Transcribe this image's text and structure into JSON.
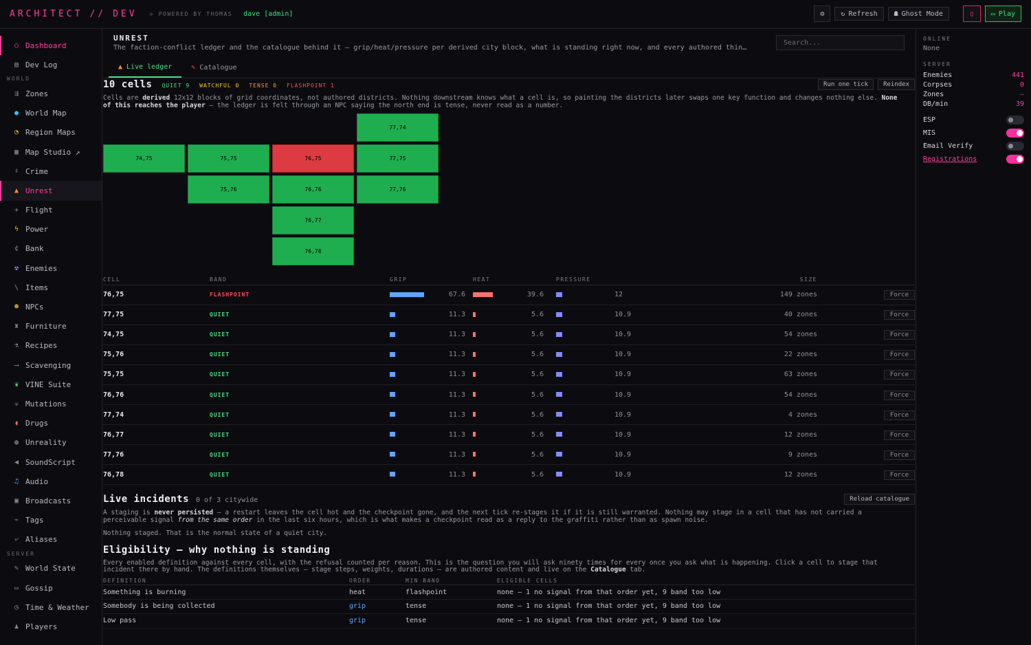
{
  "topbar": {
    "brand_left": "ARCHITECT",
    "brand_sep": "//",
    "brand_right": "DEV",
    "powered": "POWERED BY THOMAS",
    "user": "dave [admin]",
    "refresh": "Refresh",
    "ghost": "Ghost Mode",
    "play": "Play"
  },
  "sidebar": {
    "items_top": [
      {
        "label": "Dashboard",
        "icon": "circle-icon"
      },
      {
        "label": "Dev Log",
        "icon": "document-icon"
      }
    ],
    "world_label": "WORLD",
    "world_items": [
      {
        "label": "Zones",
        "icon": "zones-icon"
      },
      {
        "label": "World Map",
        "icon": "globe-icon"
      },
      {
        "label": "Region Maps",
        "icon": "compass-icon"
      },
      {
        "label": "Map Studio ↗",
        "icon": "map-studio-icon"
      },
      {
        "label": "Crime",
        "icon": "crime-icon"
      },
      {
        "label": "Unrest",
        "icon": "fire-icon"
      },
      {
        "label": "Flight",
        "icon": "plane-icon"
      },
      {
        "label": "Power",
        "icon": "bolt-icon"
      },
      {
        "label": "Bank",
        "icon": "currency-icon"
      },
      {
        "label": "Enemies",
        "icon": "enemy-icon"
      },
      {
        "label": "Items",
        "icon": "items-icon"
      },
      {
        "label": "NPCs",
        "icon": "npc-icon"
      },
      {
        "label": "Furniture",
        "icon": "furniture-icon"
      },
      {
        "label": "Recipes",
        "icon": "recipe-icon"
      },
      {
        "label": "Scavenging",
        "icon": "scavenge-icon"
      },
      {
        "label": "VINE Suite",
        "icon": "vine-icon"
      },
      {
        "label": "Mutations",
        "icon": "mutation-icon"
      },
      {
        "label": "Drugs",
        "icon": "pill-icon"
      },
      {
        "label": "Unreality",
        "icon": "unreality-icon"
      },
      {
        "label": "SoundScript",
        "icon": "soundscript-icon"
      },
      {
        "label": "Audio",
        "icon": "music-icon"
      },
      {
        "label": "Broadcasts",
        "icon": "broadcast-icon"
      },
      {
        "label": "Tags",
        "icon": "tag-icon"
      },
      {
        "label": "Aliases",
        "icon": "alias-icon"
      }
    ],
    "server_label": "SERVER",
    "server_items": [
      {
        "label": "World State",
        "icon": "world-state-icon"
      },
      {
        "label": "Gossip",
        "icon": "chat-icon"
      },
      {
        "label": "Time & Weather",
        "icon": "clock-icon"
      },
      {
        "label": "Players",
        "icon": "players-icon"
      }
    ]
  },
  "page": {
    "title": "UNREST",
    "description": "The faction-conflict ledger and the catalogue behind it — grip/heat/pressure per derived city block, what is standing right now, and every authored thin…",
    "search_placeholder": "Search...",
    "tabs": [
      "Live ledger",
      "Catalogue"
    ]
  },
  "ledger": {
    "count": "10 cells",
    "pills": [
      "QUIET 9",
      "WATCHFUL 0",
      "TENSE 0",
      "FLASHPOINT 1"
    ],
    "run_tick": "Run one tick",
    "reindex": "Reindex",
    "para_a": "Cells are ",
    "para_b": "derived",
    "para_c": " 12x12 blocks of grid coordinates, not authored districts. Nothing downstream knows what a cell is, so painting the districts later swaps one key function and changes nothing else. ",
    "para_d": "None of this reaches the player",
    "para_e": " — the ledger is felt through an NPC saying the north end is tense, never read as a number.",
    "grid_cells": [
      "74,75",
      "75,75",
      "76,75",
      "77,74",
      "77,75",
      "75,76",
      "76,76",
      "77,76",
      "76,77",
      "76,78"
    ],
    "headers": [
      "CELL",
      "BAND",
      "GRIP",
      "HEAT",
      "PRESSURE",
      "SIZE"
    ],
    "rows": [
      {
        "cell": "76,75",
        "band": "FLASHPOINT",
        "grip": "67.6",
        "heat": "39.6",
        "pressure": "12",
        "size": "149 zones",
        "action": "Force"
      },
      {
        "cell": "77,75",
        "band": "QUIET",
        "grip": "11.3",
        "heat": "5.6",
        "pressure": "10.9",
        "size": "40 zones",
        "action": "Force"
      },
      {
        "cell": "74,75",
        "band": "QUIET",
        "grip": "11.3",
        "heat": "5.6",
        "pressure": "10.9",
        "size": "54 zones",
        "action": "Force"
      },
      {
        "cell": "75,76",
        "band": "QUIET",
        "grip": "11.3",
        "heat": "5.6",
        "pressure": "10.9",
        "size": "22 zones",
        "action": "Force"
      },
      {
        "cell": "75,75",
        "band": "QUIET",
        "grip": "11.3",
        "heat": "5.6",
        "pressure": "10.9",
        "size": "63 zones",
        "action": "Force"
      },
      {
        "cell": "76,76",
        "band": "QUIET",
        "grip": "11.3",
        "heat": "5.6",
        "pressure": "10.9",
        "size": "54 zones",
        "action": "Force"
      },
      {
        "cell": "77,74",
        "band": "QUIET",
        "grip": "11.3",
        "heat": "5.6",
        "pressure": "10.9",
        "size": "4 zones",
        "action": "Force"
      },
      {
        "cell": "76,77",
        "band": "QUIET",
        "grip": "11.3",
        "heat": "5.6",
        "pressure": "10.9",
        "size": "12 zones",
        "action": "Force"
      },
      {
        "cell": "77,76",
        "band": "QUIET",
        "grip": "11.3",
        "heat": "5.6",
        "pressure": "10.9",
        "size": "9 zones",
        "action": "Force"
      },
      {
        "cell": "76,78",
        "band": "QUIET",
        "grip": "11.3",
        "heat": "5.6",
        "pressure": "10.9",
        "size": "12 zones",
        "action": "Force"
      }
    ]
  },
  "incidents": {
    "title": "Live incidents",
    "count": "0 of 3 citywide",
    "reload": "Reload catalogue",
    "p_a": "A staging is ",
    "p_b": "never persisted",
    "p_c": " — a restart leaves the cell hot and the checkpoint gone, and the next tick re-stages it if it is still warranted. Nothing may stage in a cell that has not carried a perceivable signal ",
    "p_d": "from the same order",
    "p_e": " in the last six hours, which is what makes a checkpoint read as a reply to the graffiti rather than as spawn noise.",
    "empty": "Nothing staged. That is the normal state of a quiet city."
  },
  "eligibility": {
    "title": "Eligibility — why nothing is standing",
    "p_a": "Every enabled definition against every cell, with the refusal counted per reason. This is the question you will ask ninety times for every once you ask what is happening. Click a cell to stage that incident there by hand. The definitions themselves — stage steps, weights, durations — are authored content and live on the ",
    "p_b": "Catalogue",
    "p_c": " tab.",
    "headers": [
      "DEFINITION",
      "ORDER",
      "MIN BAND",
      "ELIGIBLE CELLS"
    ],
    "rows": [
      {
        "def": "Something is burning",
        "order": "heat",
        "band": "flashpoint",
        "cells": "none — 1 no signal from that order yet, 9 band too low"
      },
      {
        "def": "Somebody is being collected",
        "order": "grip",
        "band": "tense",
        "cells": "none — 1 no signal from that order yet, 9 band too low"
      },
      {
        "def": "Low pass",
        "order": "grip",
        "band": "tense",
        "cells": "none — 1 no signal from that order yet, 9 band too low"
      }
    ]
  },
  "right": {
    "online_label": "ONLINE",
    "online_value": "None",
    "server_label": "SERVER",
    "stats": [
      {
        "label": "Enemies",
        "value": "441"
      },
      {
        "label": "Corpses",
        "value": "0"
      },
      {
        "label": "Zones",
        "value": "—"
      },
      {
        "label": "DB/min",
        "value": "39"
      }
    ],
    "toggles": [
      {
        "label": "ESP",
        "on": false
      },
      {
        "label": "MIS",
        "on": true
      },
      {
        "label": "Email Verify",
        "on": false
      },
      {
        "label": "Registrations",
        "on": true
      }
    ]
  },
  "colors": {
    "accent": "#ff3d9e",
    "quiet": "#1fae4f",
    "flashpoint": "#dc3b42",
    "grip": "#60a5fa",
    "heat": "#f87171",
    "pressure": "#818cf8"
  }
}
